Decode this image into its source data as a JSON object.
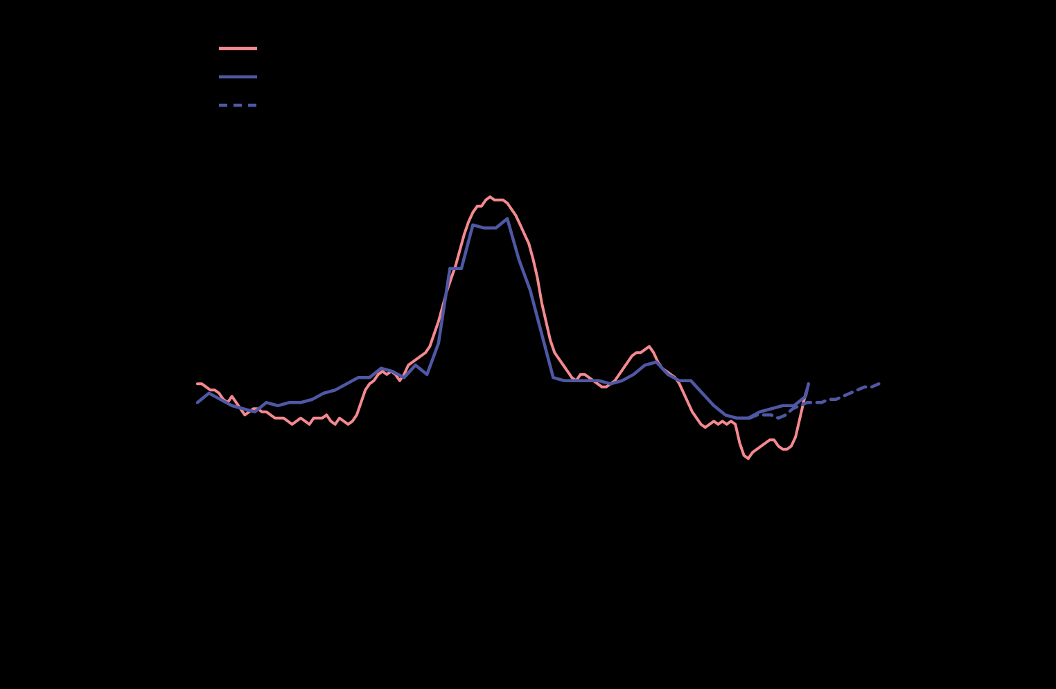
{
  "chart_data": {
    "type": "line",
    "title": "",
    "xlabel": "",
    "ylabel": "",
    "xlim": [
      0,
      100
    ],
    "ylim": [
      -60,
      80
    ],
    "grid": false,
    "legend_position": "top-left",
    "background": "#000000",
    "series": [
      {
        "name": "",
        "color": "#F4898F",
        "style": "solid",
        "points": [
          [
            0.0,
            0.0
          ],
          [
            0.6,
            0.0
          ],
          [
            1.2,
            -0.7
          ],
          [
            1.8,
            -1.4
          ],
          [
            2.4,
            -1.4
          ],
          [
            3.0,
            -2.1
          ],
          [
            3.6,
            -3.5
          ],
          [
            4.2,
            -4.2
          ],
          [
            4.8,
            -2.8
          ],
          [
            5.4,
            -4.2
          ],
          [
            6.0,
            -5.6
          ],
          [
            6.6,
            -7.0
          ],
          [
            7.2,
            -6.3
          ],
          [
            7.8,
            -5.6
          ],
          [
            8.4,
            -5.6
          ],
          [
            9.0,
            -6.3
          ],
          [
            9.6,
            -6.3
          ],
          [
            10.2,
            -7.0
          ],
          [
            10.8,
            -7.7
          ],
          [
            11.4,
            -7.7
          ],
          [
            12.0,
            -7.7
          ],
          [
            12.6,
            -8.4
          ],
          [
            13.2,
            -9.1
          ],
          [
            13.8,
            -8.4
          ],
          [
            14.4,
            -7.7
          ],
          [
            15.0,
            -8.4
          ],
          [
            15.6,
            -9.1
          ],
          [
            16.2,
            -7.7
          ],
          [
            16.8,
            -7.7
          ],
          [
            17.4,
            -7.7
          ],
          [
            18.0,
            -7.0
          ],
          [
            18.6,
            -8.4
          ],
          [
            19.2,
            -9.1
          ],
          [
            19.8,
            -7.7
          ],
          [
            20.4,
            -8.4
          ],
          [
            21.0,
            -9.1
          ],
          [
            21.6,
            -8.4
          ],
          [
            22.2,
            -7.0
          ],
          [
            22.8,
            -4.2
          ],
          [
            23.4,
            -1.4
          ],
          [
            24.0,
            0.0
          ],
          [
            24.6,
            0.7
          ],
          [
            25.2,
            2.1
          ],
          [
            25.8,
            2.8
          ],
          [
            26.4,
            2.1
          ],
          [
            27.0,
            2.8
          ],
          [
            27.6,
            2.1
          ],
          [
            28.2,
            0.7
          ],
          [
            28.8,
            2.1
          ],
          [
            29.4,
            4.2
          ],
          [
            30.0,
            4.9
          ],
          [
            30.6,
            5.6
          ],
          [
            31.2,
            6.3
          ],
          [
            31.8,
            7.0
          ],
          [
            32.4,
            8.4
          ],
          [
            33.0,
            11.2
          ],
          [
            33.6,
            14.0
          ],
          [
            34.2,
            17.5
          ],
          [
            34.8,
            21.0
          ],
          [
            35.4,
            23.8
          ],
          [
            36.0,
            26.6
          ],
          [
            36.6,
            30.1
          ],
          [
            37.2,
            33.6
          ],
          [
            37.8,
            36.4
          ],
          [
            38.4,
            38.5
          ],
          [
            39.0,
            39.9
          ],
          [
            39.6,
            39.9
          ],
          [
            40.2,
            41.3
          ],
          [
            40.8,
            42.0
          ],
          [
            41.4,
            41.3
          ],
          [
            42.0,
            41.3
          ],
          [
            42.6,
            41.3
          ],
          [
            43.2,
            40.6
          ],
          [
            43.8,
            39.2
          ],
          [
            44.4,
            37.8
          ],
          [
            45.0,
            35.7
          ],
          [
            45.6,
            33.6
          ],
          [
            46.2,
            31.5
          ],
          [
            46.8,
            28.0
          ],
          [
            47.4,
            23.8
          ],
          [
            48.0,
            18.2
          ],
          [
            48.6,
            14.0
          ],
          [
            49.2,
            9.8
          ],
          [
            49.8,
            7.0
          ],
          [
            50.4,
            5.6
          ],
          [
            51.0,
            4.2
          ],
          [
            51.6,
            2.8
          ],
          [
            52.2,
            1.4
          ],
          [
            52.8,
            0.7
          ],
          [
            53.4,
            2.1
          ],
          [
            54.0,
            2.1
          ],
          [
            54.6,
            1.4
          ],
          [
            55.2,
            0.7
          ],
          [
            55.8,
            0.0
          ],
          [
            56.4,
            -0.7
          ],
          [
            57.0,
            -0.7
          ],
          [
            57.6,
            0.0
          ],
          [
            58.2,
            0.7
          ],
          [
            58.8,
            2.1
          ],
          [
            59.4,
            3.5
          ],
          [
            60.0,
            4.9
          ],
          [
            60.6,
            6.3
          ],
          [
            61.2,
            7.0
          ],
          [
            61.8,
            7.0
          ],
          [
            62.4,
            7.7
          ],
          [
            63.0,
            8.4
          ],
          [
            63.6,
            7.0
          ],
          [
            64.2,
            4.9
          ],
          [
            64.8,
            3.5
          ],
          [
            65.4,
            2.8
          ],
          [
            66.0,
            2.1
          ],
          [
            66.6,
            1.4
          ],
          [
            67.2,
            0.0
          ],
          [
            67.8,
            -2.1
          ],
          [
            68.4,
            -4.2
          ],
          [
            69.0,
            -6.3
          ],
          [
            69.6,
            -7.7
          ],
          [
            70.2,
            -9.1
          ],
          [
            70.8,
            -9.8
          ],
          [
            71.4,
            -9.1
          ],
          [
            72.0,
            -8.4
          ],
          [
            72.6,
            -9.1
          ],
          [
            73.2,
            -8.4
          ],
          [
            73.8,
            -9.1
          ],
          [
            74.4,
            -8.4
          ],
          [
            75.0,
            -9.1
          ],
          [
            75.6,
            -13.3
          ],
          [
            76.2,
            -16.1
          ],
          [
            76.8,
            -16.8
          ],
          [
            77.4,
            -15.4
          ],
          [
            78.0,
            -14.7
          ],
          [
            78.6,
            -14.0
          ],
          [
            79.2,
            -13.3
          ],
          [
            79.8,
            -12.6
          ],
          [
            80.4,
            -12.6
          ],
          [
            81.0,
            -14.0
          ],
          [
            81.6,
            -14.7
          ],
          [
            82.2,
            -14.7
          ],
          [
            82.8,
            -14.0
          ],
          [
            83.4,
            -11.9
          ],
          [
            84.0,
            -7.7
          ],
          [
            84.6,
            -3.5
          ],
          [
            85.2,
            0.0
          ]
        ]
      },
      {
        "name": "",
        "color": "#4F58A5",
        "style": "solid",
        "points": [
          [
            0.0,
            -4.2
          ],
          [
            1.6,
            -2.1
          ],
          [
            3.2,
            -3.5
          ],
          [
            4.8,
            -4.9
          ],
          [
            6.4,
            -5.6
          ],
          [
            8.0,
            -6.3
          ],
          [
            9.6,
            -4.2
          ],
          [
            11.2,
            -4.9
          ],
          [
            12.8,
            -4.2
          ],
          [
            14.4,
            -4.2
          ],
          [
            16.0,
            -3.5
          ],
          [
            17.6,
            -2.1
          ],
          [
            19.2,
            -1.4
          ],
          [
            20.8,
            0.0
          ],
          [
            22.4,
            1.4
          ],
          [
            24.0,
            1.4
          ],
          [
            25.6,
            3.5
          ],
          [
            27.2,
            2.8
          ],
          [
            28.8,
            1.4
          ],
          [
            30.4,
            4.2
          ],
          [
            32.0,
            2.1
          ],
          [
            33.6,
            9.1
          ],
          [
            35.2,
            25.9
          ],
          [
            36.8,
            25.9
          ],
          [
            38.4,
            35.7
          ],
          [
            40.0,
            35.0
          ],
          [
            41.6,
            35.0
          ],
          [
            43.2,
            37.1
          ],
          [
            44.8,
            28.0
          ],
          [
            46.4,
            21.0
          ],
          [
            48.0,
            11.2
          ],
          [
            49.6,
            1.4
          ],
          [
            51.2,
            0.7
          ],
          [
            52.8,
            0.7
          ],
          [
            54.4,
            0.7
          ],
          [
            56.0,
            0.7
          ],
          [
            57.6,
            0.0
          ],
          [
            59.2,
            0.7
          ],
          [
            60.8,
            2.1
          ],
          [
            62.4,
            4.2
          ],
          [
            64.0,
            4.9
          ],
          [
            65.6,
            2.1
          ],
          [
            67.2,
            0.7
          ],
          [
            68.8,
            0.7
          ],
          [
            70.4,
            -2.1
          ],
          [
            72.0,
            -4.9
          ],
          [
            73.6,
            -7.0
          ],
          [
            75.2,
            -7.7
          ],
          [
            76.8,
            -7.7
          ],
          [
            78.4,
            -6.3
          ],
          [
            80.0,
            -5.6
          ],
          [
            81.6,
            -4.9
          ],
          [
            83.2,
            -4.9
          ],
          [
            84.8,
            -2.8
          ],
          [
            85.2,
            0.0
          ]
        ]
      },
      {
        "name": "",
        "color": "#4F58A5",
        "style": "dashed",
        "points": [
          [
            77.0,
            -7.7
          ],
          [
            78.0,
            -7.0
          ],
          [
            79.0,
            -7.0
          ],
          [
            80.0,
            -7.0
          ],
          [
            81.0,
            -7.7
          ],
          [
            82.0,
            -7.0
          ],
          [
            83.0,
            -5.6
          ],
          [
            84.0,
            -4.9
          ],
          [
            85.0,
            -4.2
          ],
          [
            86.0,
            -4.2
          ],
          [
            87.0,
            -4.2
          ],
          [
            88.0,
            -3.5
          ],
          [
            89.0,
            -3.5
          ],
          [
            90.0,
            -2.8
          ],
          [
            91.0,
            -2.1
          ],
          [
            92.0,
            -1.4
          ],
          [
            93.0,
            -0.7
          ],
          [
            94.0,
            -0.7
          ],
          [
            95.0,
            0.0
          ]
        ]
      }
    ]
  }
}
